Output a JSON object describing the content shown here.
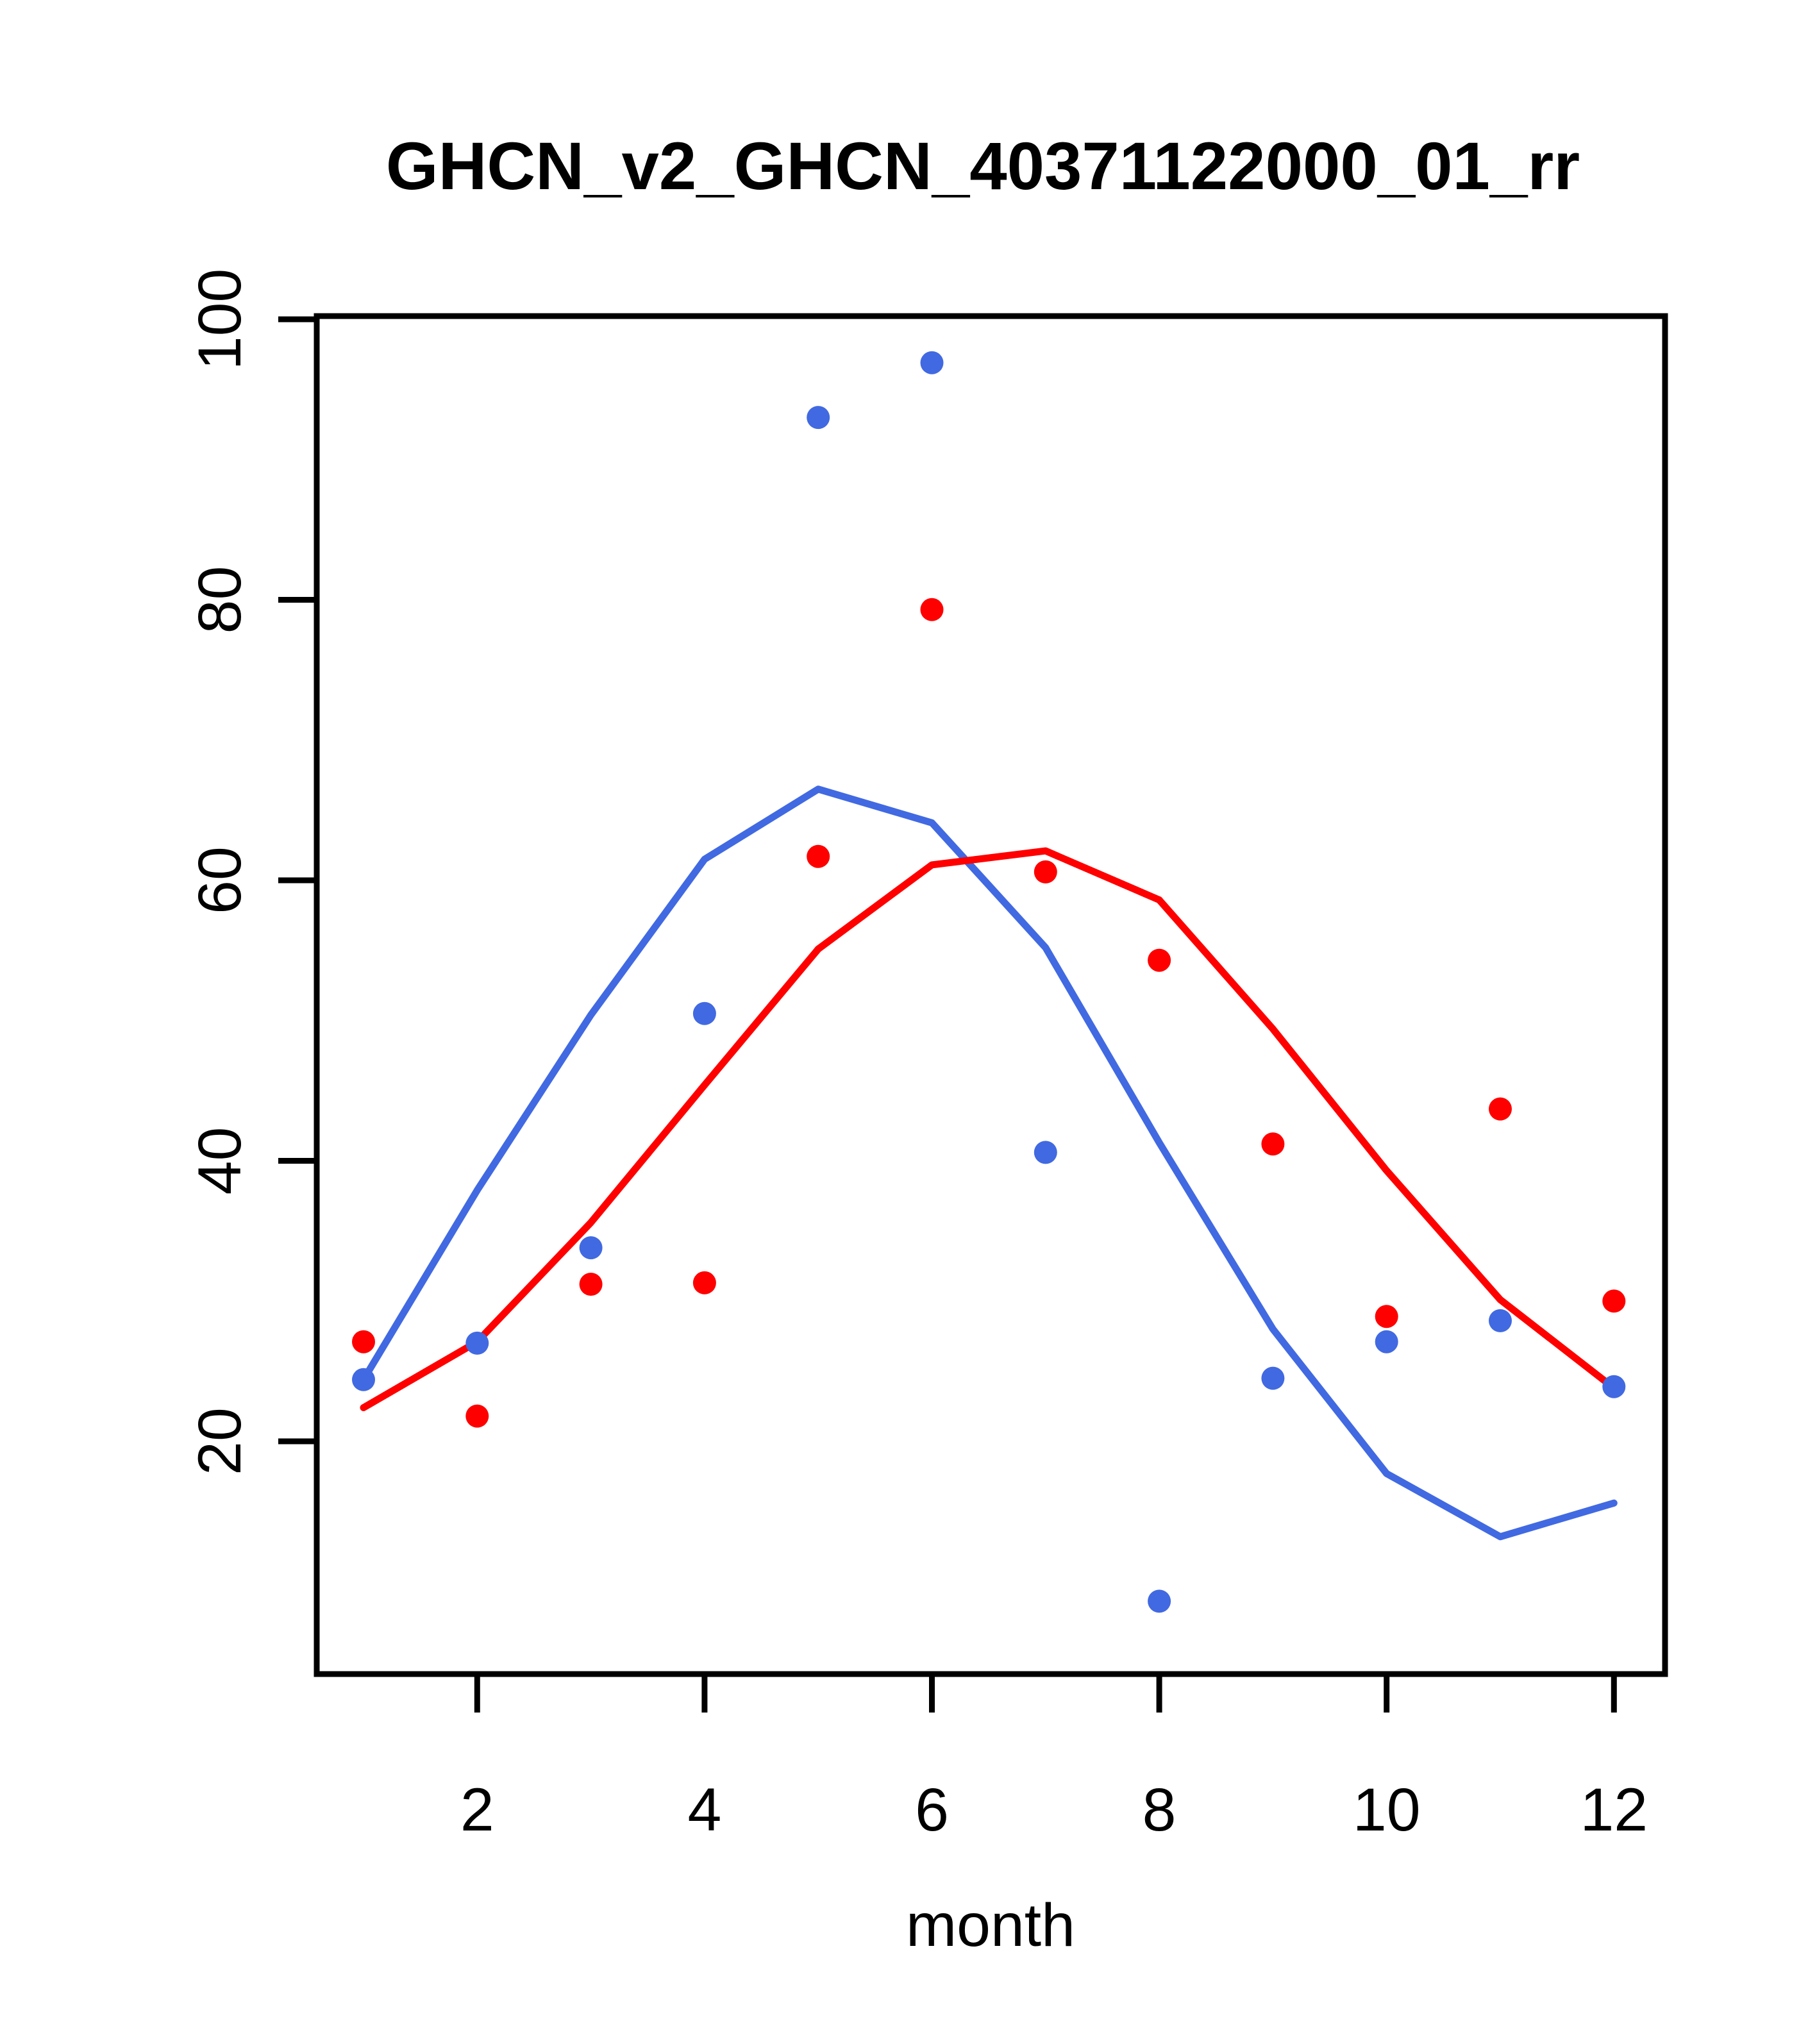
{
  "title": "GHCN_v2_GHCN_40371122000_01_rr",
  "colors": {
    "blue": "#4169E1",
    "red": "#FF0000",
    "axis": "#000000",
    "background": "#FFFFFF"
  },
  "chart_data": {
    "type": "line",
    "title": "GHCN_v2_GHCN_40371122000_01_rr",
    "xlabel": "month",
    "ylabel": "",
    "grid": false,
    "legend": "none",
    "x": [
      1,
      2,
      3,
      4,
      5,
      6,
      7,
      8,
      9,
      10,
      11,
      12
    ],
    "x_tick_values": [
      2,
      4,
      6,
      8,
      10,
      12
    ],
    "x_tick_labels": [
      "2",
      "4",
      "6",
      "8",
      "10",
      "12"
    ],
    "y_tick_values": [
      20,
      40,
      60,
      80,
      100
    ],
    "y_tick_labels": [
      "20",
      "40",
      "60",
      "80",
      "100"
    ],
    "xlim": [
      0.56,
      12.44
    ],
    "ylim": [
      3.4,
      100.2
    ],
    "series": [
      {
        "name": "blue-scatter",
        "kind": "scatter",
        "color_key": "blue",
        "values": [
          24.4,
          27.0,
          33.8,
          50.5,
          93.0,
          96.9,
          40.6,
          8.6,
          24.5,
          27.1,
          28.6,
          23.9
        ]
      },
      {
        "name": "red-scatter",
        "kind": "scatter",
        "color_key": "red",
        "values": [
          27.1,
          21.8,
          31.2,
          31.3,
          61.7,
          79.3,
          60.6,
          54.3,
          41.2,
          28.9,
          43.7,
          30.0
        ]
      },
      {
        "name": "blue-line",
        "kind": "line",
        "color_key": "blue",
        "values": [
          24.4,
          37.9,
          50.4,
          61.5,
          66.5,
          64.1,
          55.2,
          41.3,
          28.0,
          17.7,
          13.2,
          15.6
        ]
      },
      {
        "name": "red-line",
        "kind": "line",
        "color_key": "red",
        "values": [
          22.4,
          27.1,
          35.6,
          45.4,
          55.1,
          61.1,
          62.1,
          58.6,
          49.4,
          39.3,
          30.1,
          23.8
        ]
      }
    ]
  }
}
